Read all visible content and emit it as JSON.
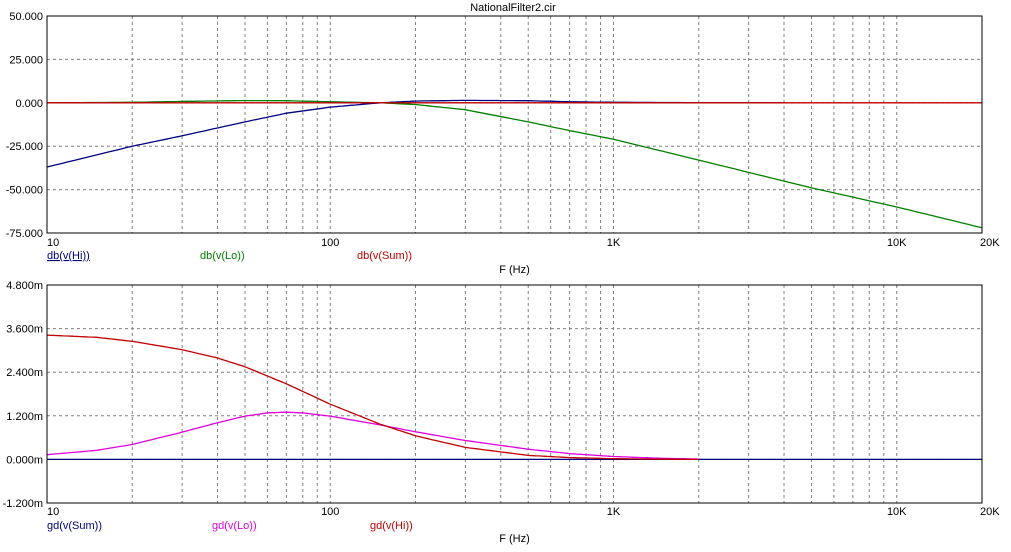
{
  "title": "NationalFilter2.cir",
  "colors": {
    "background": "#ffffff",
    "axis": "#000000",
    "grid": "#808080",
    "navy": "#000080",
    "green": "#008000",
    "red": "#c00000",
    "magenta": "#e000e0"
  },
  "chart_data": [
    {
      "type": "line",
      "title": "NationalFilter2.cir",
      "xlabel": "F (Hz)",
      "ylabel": "",
      "x_scale": "log",
      "xlim": [
        10,
        20000
      ],
      "ylim": [
        -75,
        50
      ],
      "grid": true,
      "x_ticks": [
        {
          "value": 10,
          "label": "10"
        },
        {
          "value": 100,
          "label": "100"
        },
        {
          "value": 1000,
          "label": "1K"
        },
        {
          "value": 10000,
          "label": "10K"
        },
        {
          "value": 20000,
          "label": "20K"
        }
      ],
      "y_ticks": [
        {
          "value": 50,
          "label": "50.000"
        },
        {
          "value": 25,
          "label": "25.000"
        },
        {
          "value": 0,
          "label": "0.000"
        },
        {
          "value": -25,
          "label": "-25.000"
        },
        {
          "value": -50,
          "label": "-50.000"
        },
        {
          "value": -75,
          "label": "-75.000"
        }
      ],
      "series": [
        {
          "name": "db(v(Hi))",
          "color": "#000080",
          "underline": true,
          "x": [
            10,
            20,
            30,
            50,
            70,
            100,
            150,
            200,
            300,
            500,
            700,
            1000,
            2000,
            4000
          ],
          "y": [
            -37,
            -25,
            -19,
            -11,
            -6,
            -2.5,
            0,
            1,
            1.4,
            1.2,
            0.6,
            0.3,
            0.1,
            0
          ]
        },
        {
          "name": "db(v(Lo))",
          "color": "#008000",
          "underline": false,
          "x": [
            10,
            20,
            30,
            50,
            70,
            100,
            150,
            200,
            300,
            500,
            700,
            1000,
            2000,
            5000,
            10000,
            20000
          ],
          "y": [
            0,
            0.3,
            0.8,
            1.3,
            1.2,
            0.6,
            0,
            -1,
            -4,
            -11,
            -16,
            -21,
            -33,
            -49,
            -60,
            -72
          ]
        },
        {
          "name": "db(v(Sum))",
          "color": "#c00000",
          "underline": false,
          "x": [
            10,
            100,
            1000,
            10000,
            20000
          ],
          "y": [
            0,
            0,
            0,
            0,
            0
          ]
        }
      ]
    },
    {
      "type": "line",
      "xlabel": "F (Hz)",
      "ylabel": "",
      "x_scale": "log",
      "xlim": [
        10,
        20000
      ],
      "ylim": [
        -0.0012,
        0.0048
      ],
      "grid": true,
      "x_ticks": [
        {
          "value": 10,
          "label": "10"
        },
        {
          "value": 100,
          "label": "100"
        },
        {
          "value": 1000,
          "label": "1K"
        },
        {
          "value": 10000,
          "label": "10K"
        },
        {
          "value": 20000,
          "label": "20K"
        }
      ],
      "y_ticks": [
        {
          "value": 0.0048,
          "label": "4.800m"
        },
        {
          "value": 0.0036,
          "label": "3.600m"
        },
        {
          "value": 0.0024,
          "label": "2.400m"
        },
        {
          "value": 0.0012,
          "label": "1.200m"
        },
        {
          "value": 0,
          "label": "0.000m"
        },
        {
          "value": -0.0012,
          "label": "-1.200m"
        }
      ],
      "series": [
        {
          "name": "gd(v(Sum))",
          "color": "#000080",
          "underline": false,
          "x": [
            10,
            100,
            1000,
            10000,
            20000
          ],
          "y": [
            0,
            0,
            0,
            0,
            0
          ]
        },
        {
          "name": "gd(v(Lo))",
          "color": "#e000e0",
          "underline": false,
          "x": [
            10,
            15,
            20,
            30,
            40,
            50,
            60,
            70,
            80,
            100,
            150,
            200,
            300,
            500,
            700,
            1000,
            1500,
            2000
          ],
          "y": [
            0.00013,
            0.00025,
            0.00041,
            0.00075,
            0.00101,
            0.00119,
            0.00128,
            0.0013,
            0.00128,
            0.00119,
            0.00095,
            0.00076,
            0.00052,
            0.00028,
            0.00016,
            8e-05,
            3e-05,
            1e-05
          ]
        },
        {
          "name": "gd(v(Hi))",
          "color": "#c00000",
          "underline": false,
          "x": [
            10,
            15,
            20,
            30,
            40,
            50,
            70,
            100,
            150,
            200,
            300,
            500,
            700,
            1000,
            1500,
            2000
          ],
          "y": [
            0.00342,
            0.00336,
            0.00325,
            0.00302,
            0.00279,
            0.00255,
            0.00208,
            0.00152,
            0.00097,
            0.00065,
            0.00033,
            0.00011,
            5e-05,
            2e-05,
            5e-06,
            0
          ]
        }
      ]
    }
  ]
}
